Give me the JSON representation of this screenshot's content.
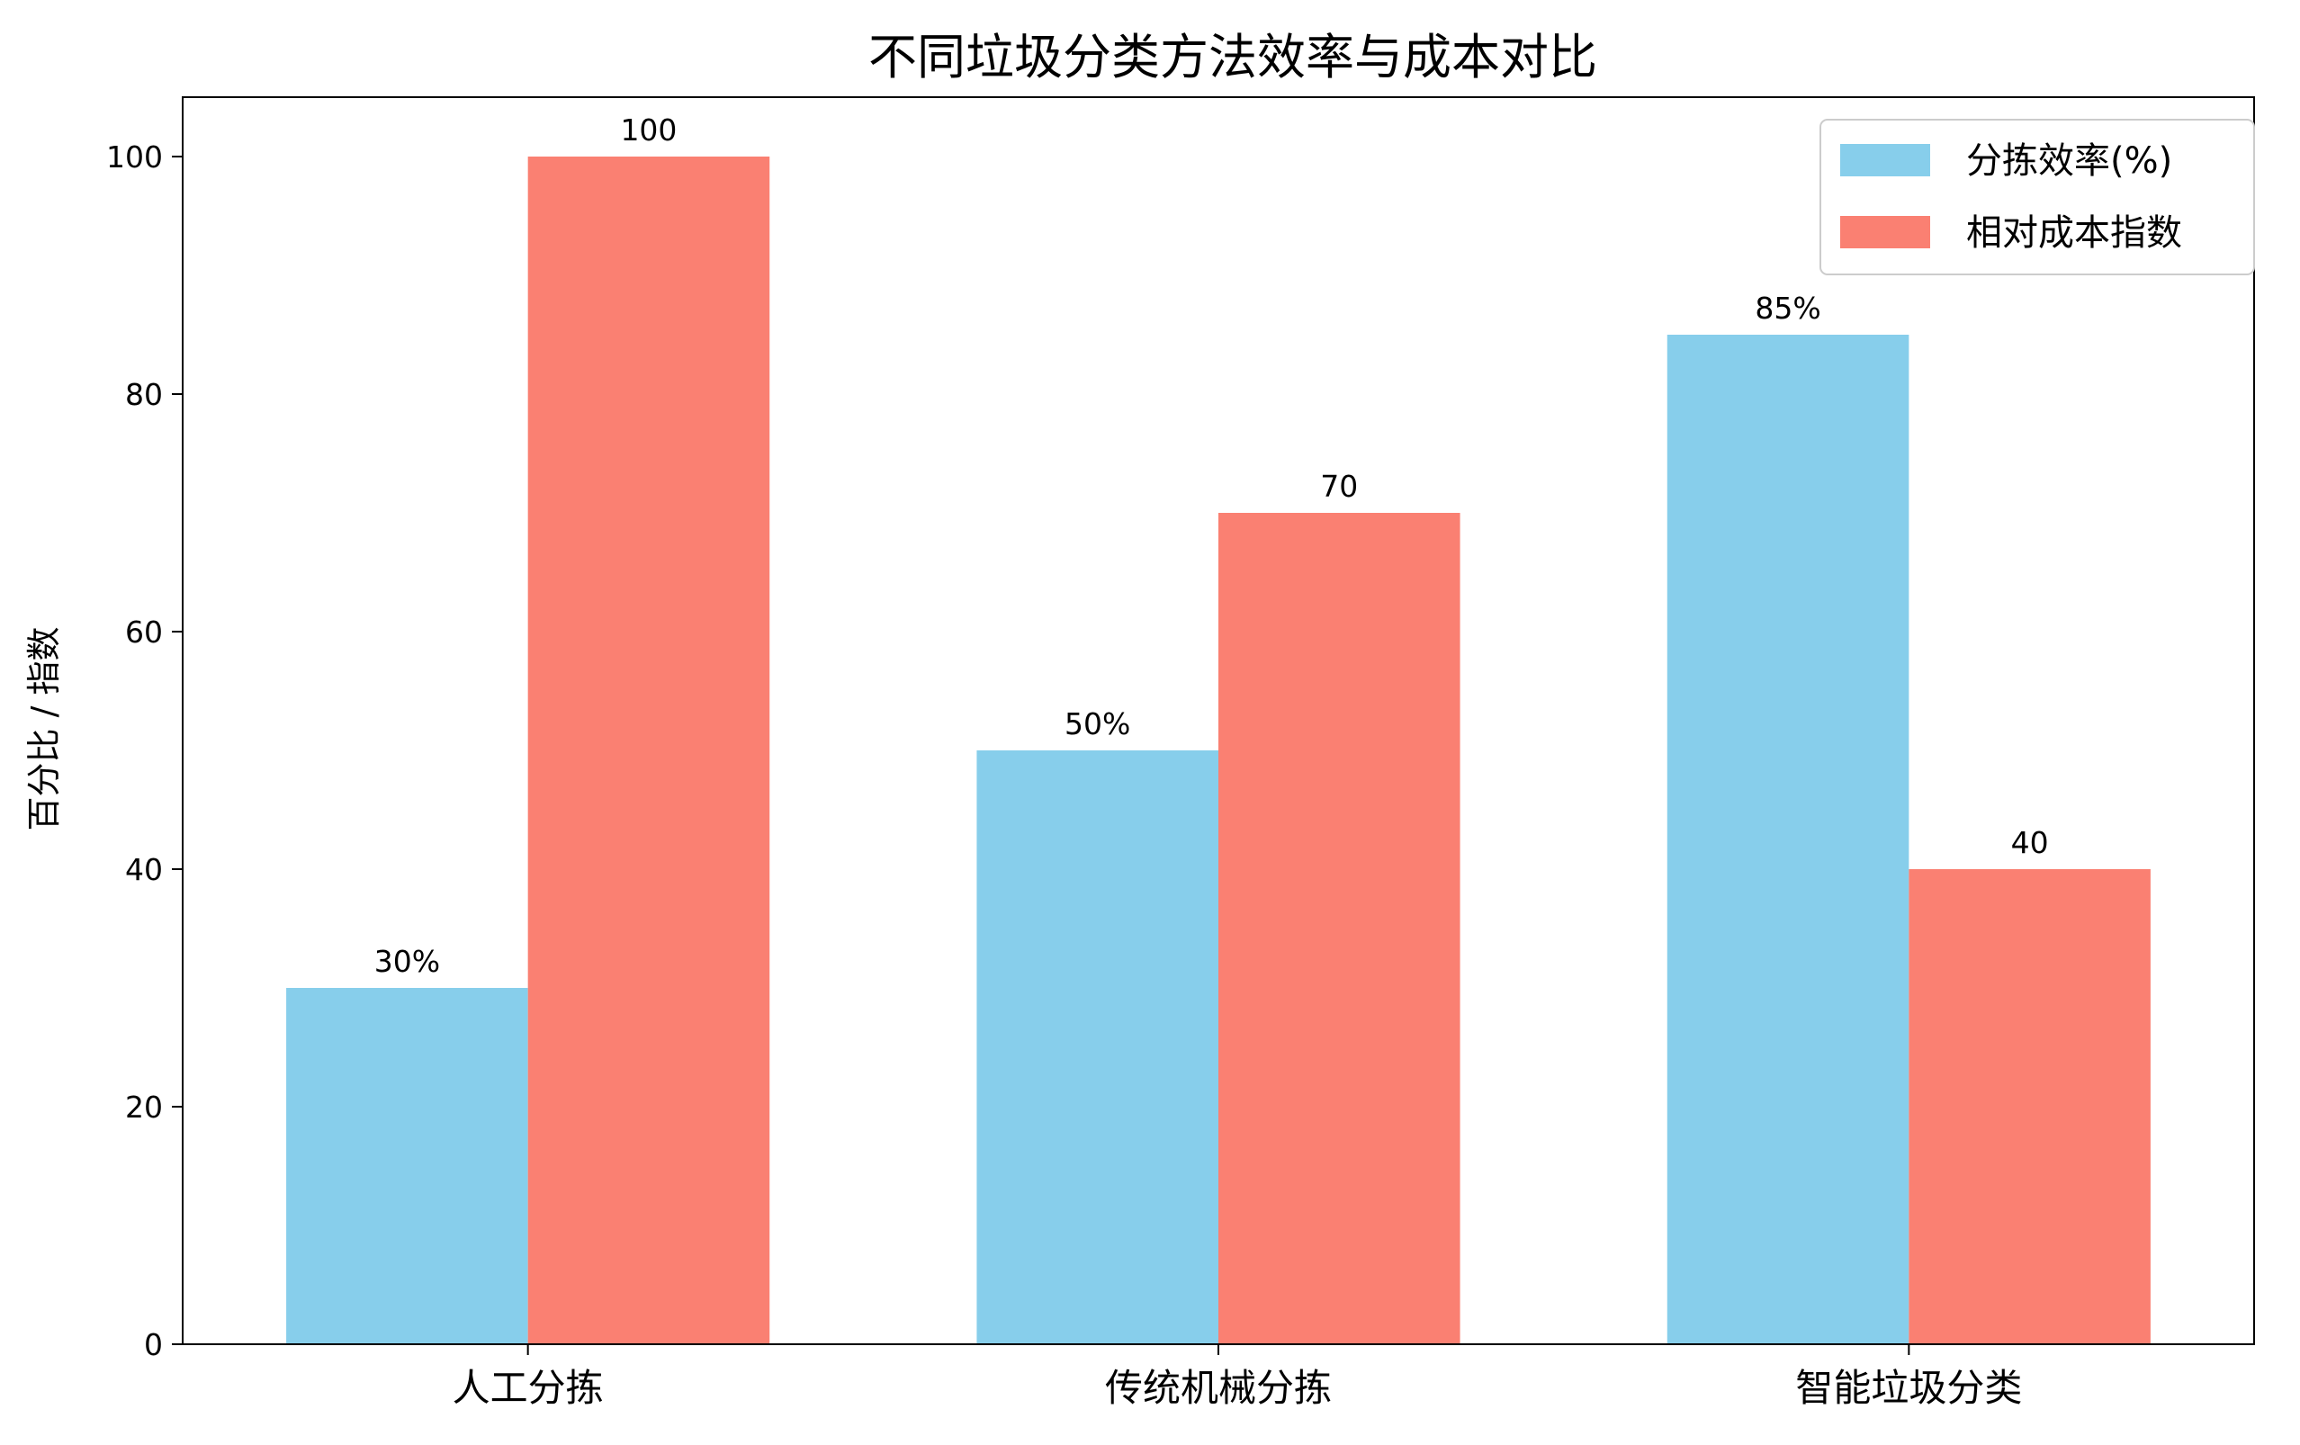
{
  "chart_data": {
    "type": "bar",
    "title": "不同垃圾分类方法效率与成本对比",
    "xlabel": "",
    "ylabel": "百分比 / 指数",
    "categories": [
      "人工分拣",
      "传统机械分拣",
      "智能垃圾分类"
    ],
    "series": [
      {
        "name": "分拣效率(%)",
        "color": "#87CEEB",
        "values": [
          30,
          50,
          85
        ],
        "labels": [
          "30%",
          "50%",
          "85%"
        ]
      },
      {
        "name": "相对成本指数",
        "color": "#FA8072",
        "values": [
          100,
          70,
          40
        ],
        "labels": [
          "100",
          "70",
          "40"
        ]
      }
    ],
    "ylim": [
      0,
      105
    ],
    "yticks": [
      0,
      20,
      40,
      60,
      80,
      100
    ],
    "grid": false,
    "legend": "top-right"
  }
}
